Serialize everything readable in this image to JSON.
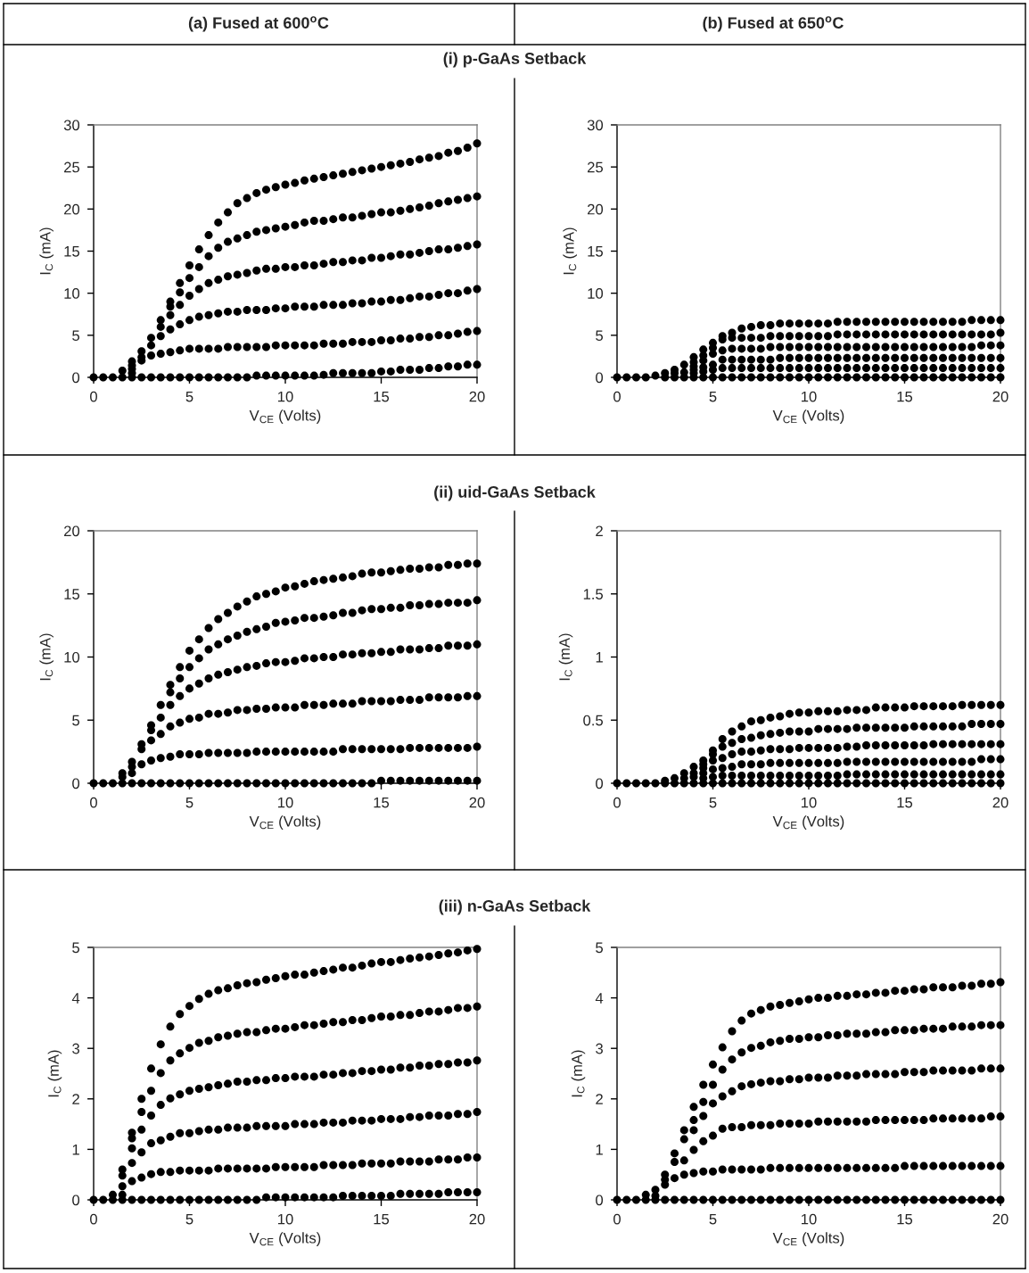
{
  "chart_data": [
    {
      "type": "scatter",
      "subtitle": "(a) Fused at 600$^{o}$C",
      "title": "(i) p-GaAs Setback",
      "xlabel": "V$_{CE}$ (Volts)",
      "ylabel": "I$_{C}$ (mA)",
      "marker": "circle",
      "xlim": [
        0,
        20
      ],
      "xticks": [
        0,
        5,
        10,
        15,
        20
      ],
      "ylim": [
        0,
        30
      ],
      "yticks": [
        0,
        5,
        10,
        15,
        20,
        25,
        30
      ],
      "x": [
        0,
        0.5,
        1,
        1.5,
        2,
        2.5,
        3,
        3.5,
        4,
        4.5,
        5,
        5.5,
        6,
        6.5,
        7,
        7.5,
        8,
        8.5,
        9,
        9.5,
        10,
        10.5,
        11,
        11.5,
        12,
        12.5,
        13,
        13.5,
        14,
        14.5,
        15,
        15.5,
        16,
        16.5,
        17,
        17.5,
        18,
        18.5,
        19,
        19.5,
        20
      ],
      "series": [
        {
          "color": "#000000",
          "values": [
            null,
            null,
            null,
            0,
            0,
            0,
            0,
            0,
            0,
            0,
            0,
            0,
            0,
            0,
            0,
            0,
            0,
            0.2,
            0.2,
            0.2,
            0.2,
            0.2,
            0.2,
            0.2,
            0.3,
            0.5,
            0.5,
            0.5,
            0.5,
            0.5,
            0.7,
            0.7,
            0.9,
            0.9,
            0.9,
            1.1,
            1.1,
            1.3,
            1.3,
            1.5,
            1.5
          ]
        },
        {
          "color": "#000000",
          "values": [
            null,
            null,
            null,
            null,
            0.5,
            2.0,
            2.6,
            2.8,
            3.0,
            3.2,
            3.4,
            3.4,
            3.4,
            3.4,
            3.6,
            3.6,
            3.6,
            3.6,
            3.6,
            3.8,
            3.8,
            3.8,
            3.8,
            3.8,
            4.0,
            4.0,
            4.0,
            4.2,
            4.2,
            4.2,
            4.4,
            4.4,
            4.6,
            4.6,
            4.8,
            4.8,
            5.0,
            5.0,
            5.2,
            5.4,
            5.5
          ]
        },
        {
          "color": "#000000",
          "values": [
            null,
            null,
            null,
            null,
            1.0,
            2.4,
            3.8,
            4.9,
            5.7,
            6.3,
            6.8,
            7.2,
            7.4,
            7.6,
            7.8,
            7.8,
            8.0,
            8.0,
            8.0,
            8.2,
            8.2,
            8.4,
            8.4,
            8.4,
            8.6,
            8.6,
            8.6,
            8.8,
            8.8,
            9.0,
            9.0,
            9.2,
            9.2,
            9.4,
            9.6,
            9.6,
            9.8,
            10.0,
            10.0,
            10.3,
            10.5
          ]
        },
        {
          "color": "#000000",
          "values": [
            null,
            null,
            null,
            null,
            1.4,
            null,
            null,
            6.0,
            7.4,
            8.6,
            9.7,
            10.5,
            11.2,
            11.6,
            12.0,
            12.2,
            12.4,
            12.7,
            12.9,
            12.9,
            13.1,
            13.1,
            13.3,
            13.3,
            13.5,
            13.7,
            13.7,
            13.9,
            13.9,
            14.2,
            14.2,
            14.4,
            14.6,
            14.6,
            14.8,
            15.0,
            15.2,
            15.2,
            15.4,
            15.6,
            15.8
          ]
        },
        {
          "color": "#000000",
          "values": [
            null,
            null,
            null,
            null,
            null,
            null,
            null,
            null,
            8.4,
            10.1,
            11.8,
            13.1,
            14.4,
            15.4,
            16.1,
            16.5,
            16.9,
            17.3,
            17.5,
            17.7,
            17.9,
            18.1,
            18.4,
            18.6,
            18.6,
            18.8,
            19.0,
            19.0,
            19.2,
            19.4,
            19.6,
            19.6,
            19.8,
            20.0,
            20.2,
            20.4,
            20.7,
            20.9,
            21.1,
            21.3,
            21.5
          ]
        },
        {
          "color": "#000000",
          "values": [
            0,
            0,
            0,
            0.8,
            1.9,
            3.1,
            4.7,
            6.8,
            9.0,
            11.2,
            13.3,
            15.2,
            16.9,
            18.4,
            19.6,
            20.7,
            21.3,
            21.9,
            22.3,
            22.6,
            22.9,
            23.1,
            23.4,
            23.6,
            23.8,
            24.0,
            24.2,
            24.4,
            24.6,
            24.8,
            25.0,
            25.2,
            25.4,
            25.6,
            25.9,
            26.1,
            26.3,
            26.7,
            26.9,
            27.3,
            27.8
          ]
        }
      ]
    },
    {
      "type": "scatter",
      "subtitle": "(b) Fused at 650$^{o}$C",
      "xlabel": "V$_{CE}$ (Volts)",
      "ylabel": "I$_{C}$ (mA)",
      "marker": "circle",
      "xlim": [
        0,
        20
      ],
      "xticks": [
        0,
        5,
        10,
        15,
        20
      ],
      "ylim": [
        0,
        30
      ],
      "yticks": [
        0,
        5,
        10,
        15,
        20,
        25,
        30
      ],
      "x": [
        0,
        0.5,
        1,
        1.5,
        2,
        2.5,
        3,
        3.5,
        4,
        4.5,
        5,
        5.5,
        6,
        6.5,
        7,
        7.5,
        8,
        8.5,
        9,
        9.5,
        10,
        10.5,
        11,
        11.5,
        12,
        12.5,
        13,
        13.5,
        14,
        14.5,
        15,
        15.5,
        16,
        16.5,
        17,
        17.5,
        18,
        18.5,
        19,
        19.5,
        20
      ],
      "series": [
        {
          "color": "#000000",
          "values": [
            null,
            null,
            null,
            null,
            null,
            0,
            0,
            0,
            0,
            0,
            0,
            0,
            0,
            0,
            0,
            0,
            0,
            0,
            0,
            0,
            0,
            0,
            0,
            0,
            0,
            0,
            0,
            0,
            0,
            0,
            0,
            0,
            0,
            0,
            0,
            0,
            0,
            0,
            0,
            0,
            0
          ]
        },
        {
          "color": "#000000",
          "values": [
            null,
            null,
            null,
            null,
            null,
            null,
            null,
            null,
            0.5,
            0.7,
            0.9,
            1.1,
            1.1,
            1.1,
            1.1,
            1.1,
            1.1,
            1.1,
            1.1,
            1.1,
            1.1,
            1.1,
            1.1,
            1.1,
            1.1,
            1.1,
            1.1,
            1.1,
            1.1,
            1.1,
            1.1,
            1.1,
            1.1,
            1.1,
            1.1,
            1.1,
            1.1,
            1.1,
            1.1,
            1.1,
            1.1
          ]
        },
        {
          "color": "#000000",
          "values": [
            null,
            null,
            null,
            null,
            null,
            null,
            null,
            0.6,
            0.9,
            1.2,
            1.5,
            2.1,
            2.1,
            2.1,
            2.1,
            2.1,
            2.1,
            2.3,
            2.3,
            2.3,
            2.3,
            2.3,
            2.3,
            2.3,
            2.3,
            2.3,
            2.3,
            2.3,
            2.3,
            2.3,
            2.3,
            2.3,
            2.3,
            2.3,
            2.3,
            2.3,
            2.3,
            2.3,
            2.3,
            2.3,
            2.3
          ]
        },
        {
          "color": "#000000",
          "values": [
            null,
            null,
            null,
            null,
            null,
            null,
            0.5,
            null,
            1.3,
            2.0,
            2.8,
            3.2,
            3.4,
            3.4,
            3.4,
            3.4,
            3.6,
            3.6,
            3.6,
            3.6,
            3.6,
            3.6,
            3.6,
            3.6,
            3.6,
            3.6,
            3.6,
            3.6,
            3.6,
            3.6,
            3.6,
            3.6,
            3.6,
            3.6,
            3.6,
            3.6,
            3.6,
            3.6,
            3.8,
            3.8,
            3.8
          ]
        },
        {
          "color": "#000000",
          "values": [
            null,
            null,
            null,
            null,
            null,
            null,
            null,
            null,
            1.8,
            2.6,
            3.5,
            4.5,
            4.7,
            4.7,
            4.7,
            4.7,
            4.9,
            4.9,
            4.9,
            4.9,
            4.9,
            4.9,
            4.9,
            5.1,
            5.1,
            5.1,
            5.1,
            5.1,
            5.1,
            5.1,
            5.1,
            5.1,
            5.1,
            5.1,
            5.1,
            5.1,
            5.1,
            5.1,
            5.1,
            5.1,
            5.3
          ]
        },
        {
          "color": "#000000",
          "values": [
            0,
            0,
            0,
            0,
            0.2,
            0.5,
            0.9,
            1.5,
            2.4,
            3.3,
            4.1,
            4.9,
            5.3,
            5.8,
            6.0,
            6.2,
            6.2,
            6.4,
            6.4,
            6.4,
            6.4,
            6.4,
            6.4,
            6.6,
            6.6,
            6.6,
            6.6,
            6.6,
            6.6,
            6.6,
            6.6,
            6.6,
            6.6,
            6.6,
            6.6,
            6.6,
            6.6,
            6.8,
            6.8,
            6.8,
            6.8
          ]
        }
      ]
    },
    {
      "type": "scatter",
      "title": "(ii) uid-GaAs Setback",
      "xlabel": "V$_{CE}$ (Volts)",
      "ylabel": "I$_{C}$ (mA)",
      "marker": "circle",
      "xlim": [
        0,
        20
      ],
      "xticks": [
        0,
        5,
        10,
        15,
        20
      ],
      "ylim": [
        0,
        20
      ],
      "yticks": [
        0,
        5,
        10,
        15,
        20
      ],
      "x": [
        0,
        0.5,
        1,
        1.5,
        2,
        2.5,
        3,
        3.5,
        4,
        4.5,
        5,
        5.5,
        6,
        6.5,
        7,
        7.5,
        8,
        8.5,
        9,
        9.5,
        10,
        10.5,
        11,
        11.5,
        12,
        12.5,
        13,
        13.5,
        14,
        14.5,
        15,
        15.5,
        16,
        16.5,
        17,
        17.5,
        18,
        18.5,
        19,
        19.5,
        20
      ],
      "series": [
        {
          "color": "#000000",
          "values": [
            null,
            null,
            null,
            0,
            0,
            0,
            0,
            0,
            0,
            0,
            0,
            0,
            0,
            0,
            0,
            0,
            0,
            0,
            0,
            0,
            0,
            0,
            0,
            0,
            0,
            0,
            0,
            0,
            0,
            0,
            0.2,
            0.2,
            0.2,
            0.2,
            0.2,
            0.2,
            0.2,
            0.2,
            0.2,
            0.2,
            0.2
          ]
        },
        {
          "color": "#000000",
          "values": [
            null,
            null,
            null,
            null,
            0.8,
            1.5,
            1.8,
            2.0,
            2.1,
            2.3,
            2.3,
            2.3,
            2.4,
            2.4,
            2.4,
            2.4,
            2.4,
            2.5,
            2.5,
            2.5,
            2.5,
            2.5,
            2.5,
            2.5,
            2.5,
            2.5,
            2.7,
            2.7,
            2.7,
            2.7,
            2.7,
            2.7,
            2.7,
            2.8,
            2.8,
            2.8,
            2.8,
            2.8,
            2.8,
            2.8,
            2.9
          ]
        },
        {
          "color": "#000000",
          "values": [
            null,
            null,
            null,
            null,
            null,
            null,
            3.4,
            3.9,
            4.5,
            4.8,
            5.1,
            5.2,
            5.5,
            5.5,
            5.6,
            5.8,
            5.8,
            5.9,
            5.9,
            6.0,
            6.0,
            6.0,
            6.2,
            6.2,
            6.2,
            6.3,
            6.3,
            6.3,
            6.5,
            6.5,
            6.5,
            6.5,
            6.6,
            6.6,
            6.6,
            6.8,
            6.8,
            6.8,
            6.8,
            6.9,
            6.9
          ]
        },
        {
          "color": "#000000",
          "values": [
            null,
            null,
            null,
            0.5,
            1.3,
            2.7,
            4.2,
            5.2,
            6.2,
            6.9,
            7.5,
            7.9,
            8.3,
            8.6,
            8.8,
            9.0,
            9.2,
            9.3,
            9.5,
            9.6,
            9.6,
            9.7,
            9.9,
            9.9,
            10.0,
            10.0,
            10.2,
            10.2,
            10.3,
            10.3,
            10.4,
            10.4,
            10.6,
            10.6,
            10.6,
            10.7,
            10.7,
            10.9,
            10.9,
            10.9,
            11.0
          ]
        },
        {
          "color": "#000000",
          "values": [
            null,
            null,
            null,
            null,
            null,
            null,
            null,
            null,
            7.2,
            8.3,
            9.2,
            9.9,
            10.6,
            11.0,
            11.4,
            11.7,
            12.0,
            12.2,
            12.4,
            12.7,
            12.8,
            12.9,
            13.1,
            13.1,
            13.2,
            13.3,
            13.5,
            13.5,
            13.7,
            13.8,
            13.8,
            13.9,
            13.9,
            14.1,
            14.1,
            14.2,
            14.2,
            14.3,
            14.3,
            14.3,
            14.5
          ]
        },
        {
          "color": "#000000",
          "values": [
            0,
            0,
            0,
            0.8,
            1.7,
            3.1,
            4.6,
            6.2,
            7.8,
            9.2,
            10.5,
            11.4,
            12.3,
            13.0,
            13.5,
            14.0,
            14.4,
            14.8,
            15.0,
            15.2,
            15.5,
            15.6,
            15.8,
            16.0,
            16.1,
            16.2,
            16.3,
            16.4,
            16.6,
            16.7,
            16.7,
            16.8,
            16.9,
            17.0,
            17.0,
            17.1,
            17.1,
            17.3,
            17.3,
            17.4,
            17.4
          ]
        }
      ]
    },
    {
      "type": "scatter",
      "xlabel": "V$_{CE}$ (Volts)",
      "ylabel": "I$_{C}$ (mA)",
      "marker": "circle",
      "xlim": [
        0,
        20
      ],
      "xticks": [
        0,
        5,
        10,
        15,
        20
      ],
      "ylim": [
        0,
        2
      ],
      "yticks": [
        0,
        0.5,
        1,
        1.5,
        2
      ],
      "x": [
        0,
        0.5,
        1,
        1.5,
        2,
        2.5,
        3,
        3.5,
        4,
        4.5,
        5,
        5.5,
        6,
        6.5,
        7,
        7.5,
        8,
        8.5,
        9,
        9.5,
        10,
        10.5,
        11,
        11.5,
        12,
        12.5,
        13,
        13.5,
        14,
        14.5,
        15,
        15.5,
        16,
        16.5,
        17,
        17.5,
        18,
        18.5,
        19,
        19.5,
        20
      ],
      "series": [
        {
          "color": "#000000",
          "values": [
            null,
            null,
            null,
            null,
            null,
            0,
            0,
            0,
            0,
            0,
            0,
            0,
            0,
            0,
            0,
            0,
            0,
            0,
            0,
            0,
            0,
            0,
            0,
            0,
            0,
            0,
            0,
            0,
            0,
            0,
            0,
            0,
            0,
            0,
            0,
            0,
            0,
            0,
            0,
            0,
            0
          ]
        },
        {
          "color": "#000000",
          "values": [
            null,
            null,
            null,
            null,
            null,
            null,
            null,
            null,
            null,
            0.04,
            0.05,
            0.06,
            0.06,
            0.06,
            0.06,
            0.06,
            0.06,
            0.06,
            0.06,
            0.06,
            0.06,
            0.06,
            0.06,
            0.06,
            0.07,
            0.07,
            0.07,
            0.07,
            0.07,
            0.07,
            0.07,
            0.07,
            0.07,
            0.07,
            0.07,
            0.07,
            0.07,
            0.07,
            0.07,
            0.07,
            0.07
          ]
        },
        {
          "color": "#000000",
          "values": [
            null,
            null,
            null,
            null,
            null,
            null,
            null,
            null,
            0.05,
            0.08,
            0.11,
            0.12,
            0.13,
            0.15,
            0.15,
            0.15,
            0.16,
            0.16,
            0.16,
            0.16,
            0.16,
            0.16,
            0.16,
            0.16,
            0.17,
            0.17,
            0.17,
            0.17,
            0.17,
            0.17,
            0.17,
            0.17,
            0.17,
            0.17,
            0.17,
            0.17,
            0.17,
            0.17,
            0.19,
            0.19,
            0.19
          ]
        },
        {
          "color": "#000000",
          "values": [
            null,
            null,
            null,
            null,
            null,
            null,
            null,
            0.04,
            0.08,
            0.12,
            0.18,
            0.2,
            0.23,
            0.25,
            0.25,
            0.26,
            0.27,
            0.27,
            0.27,
            0.28,
            0.28,
            0.28,
            0.28,
            0.28,
            0.29,
            0.29,
            0.3,
            0.3,
            0.3,
            0.3,
            0.3,
            0.3,
            0.3,
            0.31,
            0.31,
            0.31,
            0.31,
            0.31,
            0.31,
            0.31,
            0.31
          ]
        },
        {
          "color": "#000000",
          "values": [
            null,
            null,
            null,
            null,
            null,
            null,
            null,
            null,
            null,
            0.15,
            0.23,
            0.29,
            0.32,
            0.35,
            0.36,
            0.38,
            0.39,
            0.4,
            0.41,
            0.41,
            0.41,
            0.43,
            0.43,
            0.43,
            0.43,
            0.44,
            0.44,
            0.44,
            0.44,
            0.44,
            0.44,
            0.45,
            0.45,
            0.45,
            0.45,
            0.45,
            0.45,
            0.47,
            0.47,
            0.47,
            0.47
          ]
        },
        {
          "color": "#000000",
          "values": [
            0,
            0,
            0,
            0,
            0,
            0.02,
            0.04,
            0.08,
            0.13,
            0.18,
            0.26,
            0.35,
            0.41,
            0.45,
            0.49,
            0.5,
            0.52,
            0.53,
            0.55,
            0.56,
            0.56,
            0.57,
            0.57,
            0.57,
            0.58,
            0.58,
            0.58,
            0.6,
            0.6,
            0.6,
            0.6,
            0.61,
            0.61,
            0.61,
            0.61,
            0.61,
            0.62,
            0.62,
            0.62,
            0.62,
            0.62
          ]
        }
      ]
    },
    {
      "type": "scatter",
      "title": "(iii) n-GaAs Setback",
      "xlabel": "V$_{CE}$ (Volts)",
      "ylabel": "I$_{C}$ (mA)",
      "marker": "circle",
      "xlim": [
        0,
        20
      ],
      "xticks": [
        0,
        5,
        10,
        15,
        20
      ],
      "ylim": [
        0,
        5
      ],
      "yticks": [
        0,
        1,
        2,
        3,
        4,
        5
      ],
      "x": [
        0,
        0.5,
        1,
        1.5,
        2,
        2.5,
        3,
        3.5,
        4,
        4.5,
        5,
        5.5,
        6,
        6.5,
        7,
        7.5,
        8,
        8.5,
        9,
        9.5,
        10,
        10.5,
        11,
        11.5,
        12,
        12.5,
        13,
        13.5,
        14,
        14.5,
        15,
        15.5,
        16,
        16.5,
        17,
        17.5,
        18,
        18.5,
        19,
        19.5,
        20
      ],
      "series": [
        {
          "color": "#000000",
          "values": [
            null,
            null,
            0,
            0,
            0,
            0,
            0,
            0,
            0,
            0,
            0,
            0,
            0,
            0,
            0,
            0,
            0,
            0,
            0.05,
            0.05,
            0.05,
            0.05,
            0.05,
            0.05,
            0.05,
            0.05,
            0.08,
            0.08,
            0.08,
            0.08,
            0.08,
            0.08,
            0.12,
            0.12,
            0.12,
            0.12,
            0.12,
            0.15,
            0.15,
            0.15,
            0.15
          ]
        },
        {
          "color": "#000000",
          "values": [
            null,
            null,
            null,
            0.1,
            0.37,
            0.44,
            0.51,
            0.55,
            0.55,
            0.58,
            0.58,
            0.58,
            0.58,
            0.62,
            0.62,
            0.62,
            0.62,
            0.62,
            0.62,
            0.65,
            0.65,
            0.65,
            0.65,
            0.65,
            0.69,
            0.69,
            0.69,
            0.69,
            0.72,
            0.72,
            0.72,
            0.72,
            0.76,
            0.76,
            0.76,
            0.76,
            0.8,
            0.8,
            0.8,
            0.84,
            0.84
          ]
        },
        {
          "color": "#000000",
          "values": [
            null,
            null,
            null,
            0.27,
            0.73,
            0.94,
            1.12,
            1.18,
            1.25,
            1.32,
            1.32,
            1.36,
            1.39,
            1.39,
            1.43,
            1.43,
            1.43,
            1.46,
            1.46,
            1.46,
            1.46,
            1.5,
            1.5,
            1.5,
            1.53,
            1.53,
            1.53,
            1.57,
            1.57,
            1.57,
            1.6,
            1.6,
            1.6,
            1.64,
            1.64,
            1.67,
            1.67,
            1.67,
            1.7,
            1.7,
            1.74
          ]
        },
        {
          "color": "#000000",
          "values": [
            null,
            null,
            null,
            0.48,
            1.02,
            1.39,
            1.67,
            1.88,
            2.01,
            2.09,
            2.16,
            2.2,
            2.23,
            2.27,
            2.3,
            2.34,
            2.34,
            2.37,
            2.37,
            2.41,
            2.41,
            2.44,
            2.44,
            2.44,
            2.48,
            2.48,
            2.51,
            2.51,
            2.55,
            2.55,
            2.58,
            2.58,
            2.62,
            2.62,
            2.66,
            2.66,
            2.69,
            2.69,
            2.72,
            2.72,
            2.76
          ]
        },
        {
          "color": "#000000",
          "values": [
            null,
            null,
            null,
            null,
            1.22,
            1.74,
            2.16,
            2.51,
            2.76,
            2.9,
            3.01,
            3.11,
            3.15,
            3.22,
            3.25,
            3.29,
            3.32,
            3.32,
            3.36,
            3.39,
            3.39,
            3.42,
            3.46,
            3.46,
            3.49,
            3.52,
            3.52,
            3.56,
            3.56,
            3.6,
            3.63,
            3.63,
            3.66,
            3.66,
            3.7,
            3.73,
            3.73,
            3.76,
            3.8,
            3.8,
            3.83
          ]
        },
        {
          "color": "#000000",
          "values": [
            0,
            0,
            0.1,
            0.6,
            1.33,
            2.0,
            2.6,
            3.08,
            3.43,
            3.68,
            3.84,
            3.98,
            4.08,
            4.15,
            4.19,
            4.25,
            4.29,
            4.31,
            4.36,
            4.39,
            4.43,
            4.46,
            4.46,
            4.5,
            4.53,
            4.56,
            4.6,
            4.6,
            4.64,
            4.68,
            4.71,
            4.71,
            4.75,
            4.78,
            4.8,
            4.82,
            4.85,
            4.88,
            4.9,
            4.94,
            4.97
          ]
        }
      ]
    },
    {
      "type": "scatter",
      "xlabel": "V$_{CE}$ (Volts)",
      "ylabel": "I$_{C}$ (mA)",
      "marker": "circle",
      "xlim": [
        0,
        20
      ],
      "xticks": [
        0,
        5,
        10,
        15,
        20
      ],
      "ylim": [
        0,
        5
      ],
      "yticks": [
        0,
        1,
        2,
        3,
        4,
        5
      ],
      "x": [
        0,
        0.5,
        1,
        1.5,
        2,
        2.5,
        3,
        3.5,
        4,
        4.5,
        5,
        5.5,
        6,
        6.5,
        7,
        7.5,
        8,
        8.5,
        9,
        9.5,
        10,
        10.5,
        11,
        11.5,
        12,
        12.5,
        13,
        13.5,
        14,
        14.5,
        15,
        15.5,
        16,
        16.5,
        17,
        17.5,
        18,
        18.5,
        19,
        19.5,
        20
      ],
      "series": [
        {
          "color": "#000000",
          "values": [
            null,
            null,
            null,
            0,
            0,
            0,
            0,
            0,
            0,
            0,
            0,
            0,
            0,
            0,
            0,
            0,
            0,
            0,
            0,
            0,
            0,
            0,
            0,
            0,
            0,
            0,
            0,
            0,
            0,
            0,
            0,
            0,
            0,
            0,
            0,
            0,
            0,
            0,
            0,
            0,
            0
          ]
        },
        {
          "color": "#000000",
          "values": [
            null,
            null,
            null,
            null,
            null,
            0.3,
            0.43,
            0.5,
            0.53,
            0.56,
            0.56,
            0.6,
            0.6,
            0.6,
            0.6,
            0.6,
            0.63,
            0.63,
            0.63,
            0.63,
            0.63,
            0.63,
            0.63,
            0.63,
            0.63,
            0.63,
            0.63,
            0.63,
            0.63,
            0.63,
            0.67,
            0.67,
            0.67,
            0.67,
            0.67,
            0.67,
            0.67,
            0.67,
            0.67,
            0.67,
            0.67
          ]
        },
        {
          "color": "#000000",
          "values": [
            null,
            null,
            null,
            null,
            0.08,
            null,
            0.75,
            0.78,
            0.99,
            1.16,
            1.27,
            1.41,
            1.44,
            1.44,
            1.48,
            1.48,
            1.48,
            1.51,
            1.51,
            1.51,
            1.51,
            1.55,
            1.55,
            1.55,
            1.55,
            1.55,
            1.55,
            1.58,
            1.58,
            1.58,
            1.58,
            1.58,
            1.58,
            1.61,
            1.61,
            1.61,
            1.61,
            1.61,
            1.61,
            1.65,
            1.65
          ]
        },
        {
          "color": "#000000",
          "values": [
            null,
            null,
            null,
            null,
            null,
            0.4,
            null,
            null,
            1.38,
            1.66,
            1.91,
            2.05,
            2.15,
            2.25,
            2.29,
            2.32,
            2.35,
            2.35,
            2.39,
            2.39,
            2.42,
            2.42,
            2.42,
            2.46,
            2.46,
            2.46,
            2.49,
            2.49,
            2.49,
            2.49,
            2.53,
            2.53,
            2.53,
            2.56,
            2.56,
            2.56,
            2.56,
            2.56,
            2.6,
            2.6,
            2.6
          ]
        },
        {
          "color": "#000000",
          "values": [
            null,
            null,
            null,
            null,
            null,
            null,
            null,
            1.2,
            1.58,
            1.94,
            2.28,
            2.58,
            2.78,
            2.92,
            3.01,
            3.05,
            3.12,
            3.15,
            3.19,
            3.19,
            3.22,
            3.22,
            3.26,
            3.26,
            3.29,
            3.29,
            3.29,
            3.32,
            3.32,
            3.36,
            3.36,
            3.36,
            3.39,
            3.39,
            3.39,
            3.43,
            3.43,
            3.43,
            3.46,
            3.46,
            3.46
          ]
        },
        {
          "color": "#000000",
          "values": [
            0,
            0,
            0,
            0.1,
            0.2,
            0.5,
            0.92,
            1.38,
            1.84,
            2.28,
            2.68,
            3.02,
            3.34,
            3.55,
            3.69,
            3.76,
            3.83,
            3.86,
            3.9,
            3.93,
            3.97,
            4.0,
            4.0,
            4.04,
            4.04,
            4.07,
            4.07,
            4.1,
            4.1,
            4.14,
            4.14,
            4.17,
            4.17,
            4.21,
            4.21,
            4.21,
            4.24,
            4.24,
            4.28,
            4.28,
            4.31
          ]
        }
      ]
    }
  ]
}
